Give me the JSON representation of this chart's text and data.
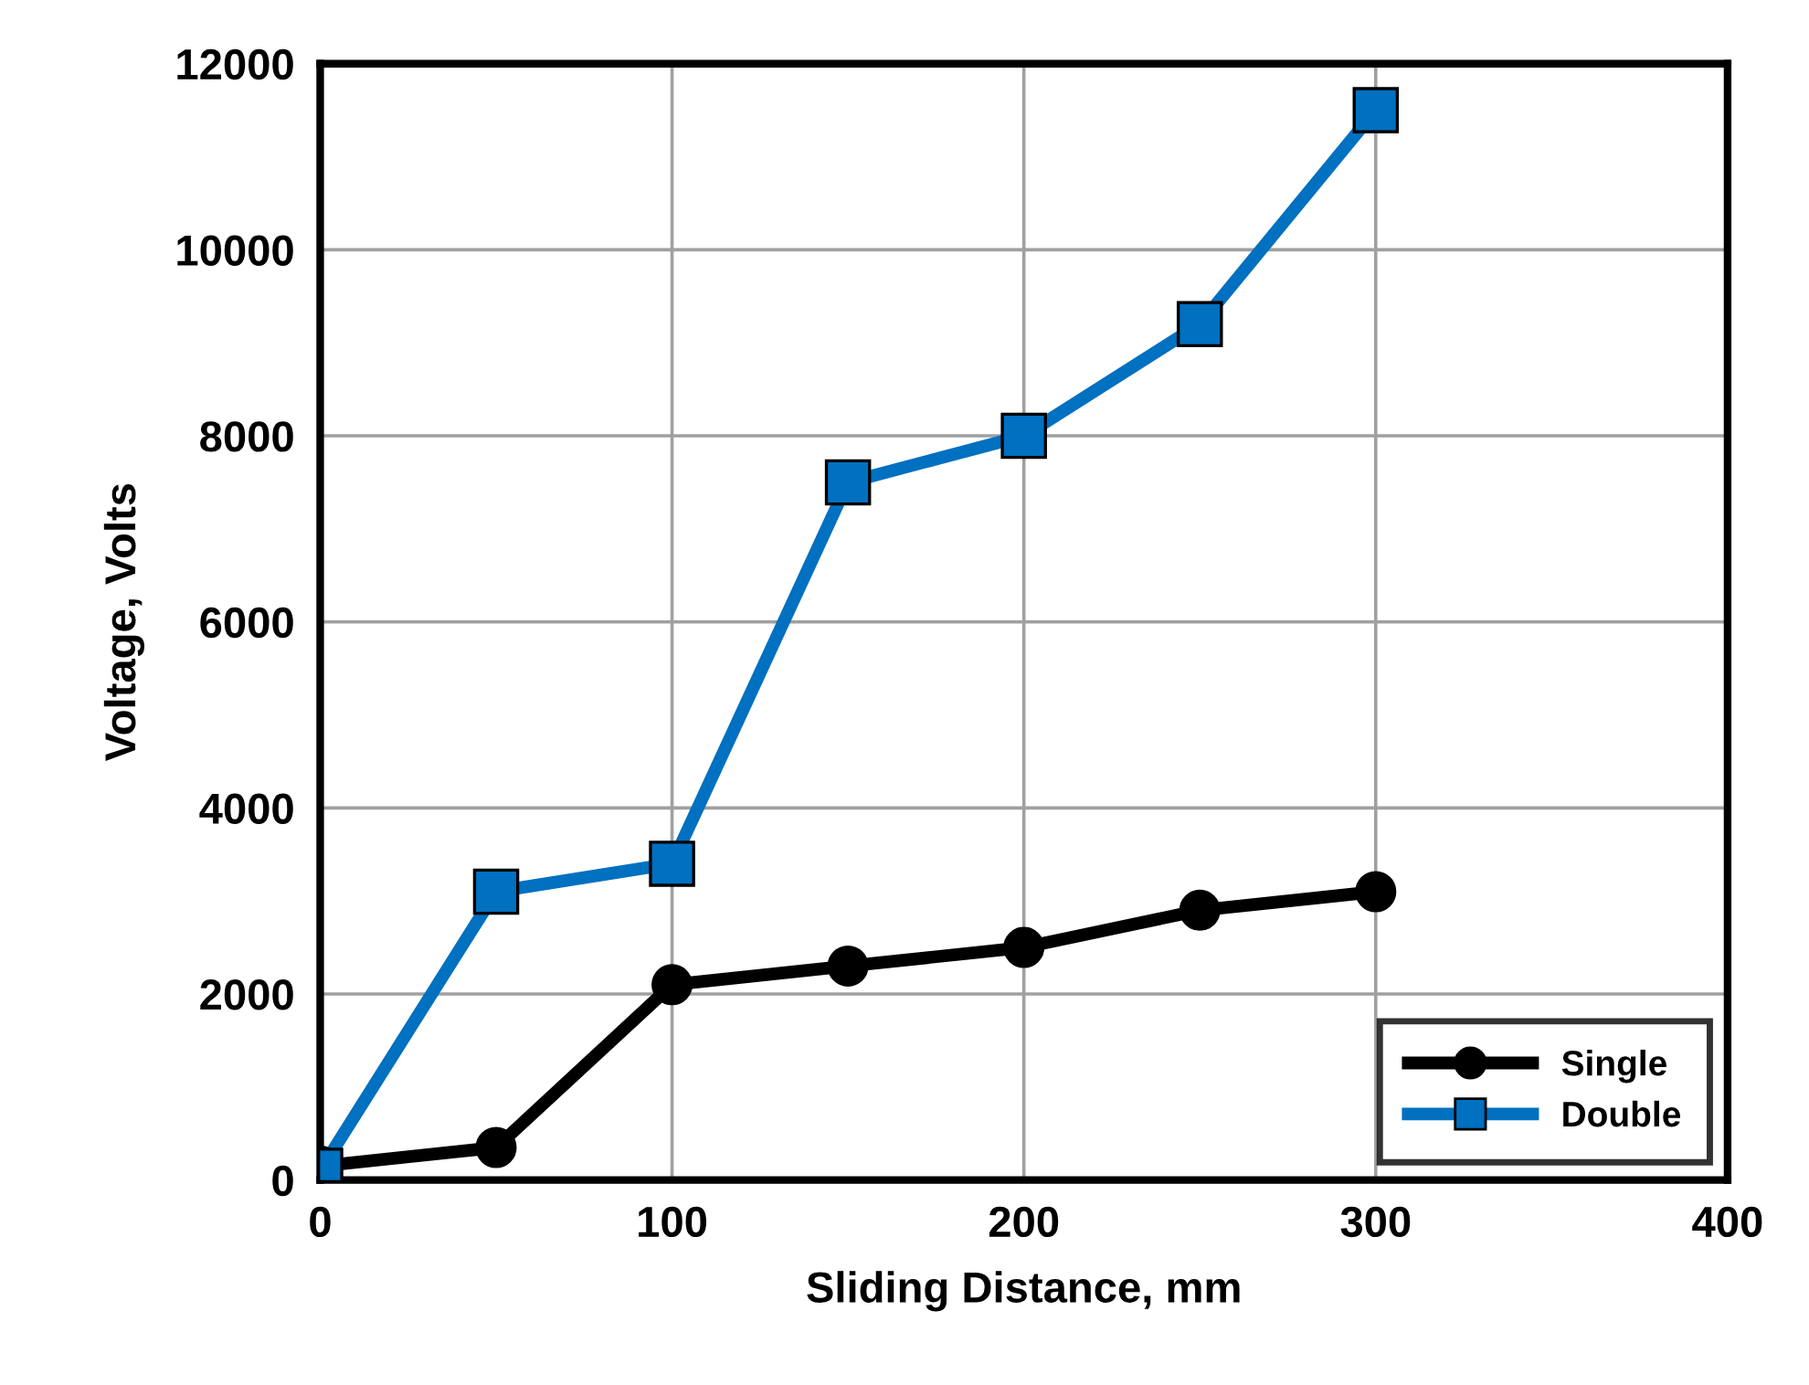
{
  "chart_data": {
    "type": "line",
    "xlabel": "Sliding Distance, mm",
    "ylabel": "Voltage, Volts",
    "xlim": [
      0,
      400
    ],
    "xticks": [
      0,
      100,
      200,
      300,
      400
    ],
    "ylim": [
      0,
      12000
    ],
    "yticks": [
      0,
      2000,
      4000,
      6000,
      8000,
      10000,
      12000
    ],
    "grid": true,
    "legend": "bottom right",
    "line_style": "solid",
    "series": [
      {
        "name": "Single",
        "color": "#000000",
        "marker": "circle",
        "x": [
          0,
          50,
          100,
          150,
          200,
          250,
          300
        ],
        "values": [
          150,
          350,
          2100,
          2300,
          2500,
          2900,
          3100
        ]
      },
      {
        "name": "Double",
        "color": "#0070c0",
        "marker": "square",
        "x": [
          0,
          50,
          100,
          150,
          200,
          250,
          300
        ],
        "values": [
          100,
          3100,
          3400,
          7500,
          8000,
          9200,
          11500
        ]
      }
    ]
  }
}
